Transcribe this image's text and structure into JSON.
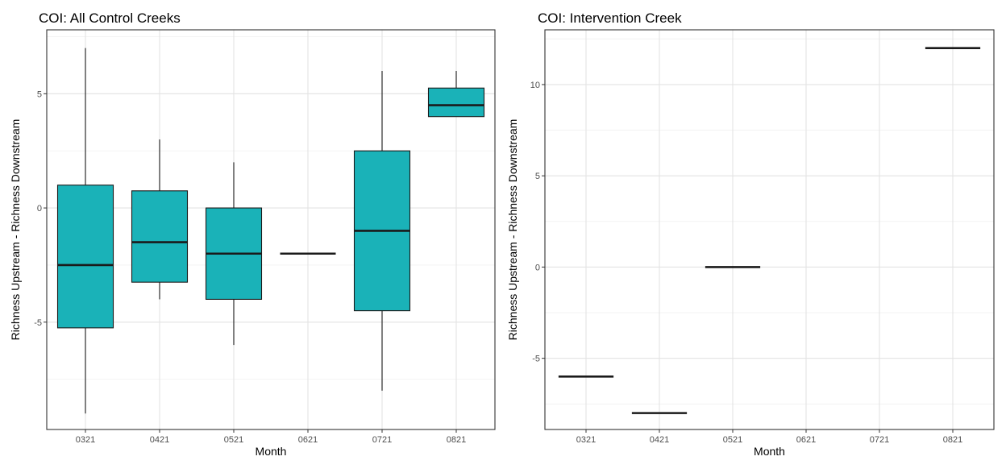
{
  "chart_data": [
    {
      "type": "boxplot",
      "title": "COI: All Control Creeks",
      "xlabel": "Month",
      "ylabel": "Richness Upstream - Richness Downstream",
      "categories": [
        "0321",
        "0421",
        "0521",
        "0621",
        "0721",
        "0821"
      ],
      "ylim": [
        -9.7,
        7.8
      ],
      "yticks": [
        -5,
        0,
        5
      ],
      "ytick_labels": [
        "-5",
        "0",
        "5"
      ],
      "box_fill": "#1AB2B8",
      "boxes": [
        {
          "category": "0321",
          "min": -9,
          "q1": -5.25,
          "median": -2.5,
          "q3": 1,
          "max": 7
        },
        {
          "category": "0421",
          "min": -4,
          "q1": -3.25,
          "median": -1.5,
          "q3": 0.75,
          "max": 3
        },
        {
          "category": "0521",
          "min": -6,
          "q1": -4,
          "median": -2,
          "q3": 0,
          "max": 2
        },
        {
          "category": "0621",
          "min": -2,
          "q1": -2,
          "median": -2,
          "q3": -2,
          "max": -2
        },
        {
          "category": "0721",
          "min": -8,
          "q1": -4.5,
          "median": -1,
          "q3": 2.5,
          "max": 6
        },
        {
          "category": "0821",
          "min": 4,
          "q1": 4,
          "median": 4.5,
          "q3": 5.25,
          "max": 6
        }
      ]
    },
    {
      "type": "boxplot",
      "title": "COI: Intervention Creek",
      "xlabel": "Month",
      "ylabel": "Richness Upstream - Richness Downstream",
      "categories": [
        "0321",
        "0421",
        "0521",
        "0621",
        "0721",
        "0821"
      ],
      "ylim": [
        -8.9,
        13.0
      ],
      "yticks": [
        -5,
        0,
        5,
        10
      ],
      "ytick_labels": [
        "-5",
        "0",
        "5",
        "10"
      ],
      "box_fill": "#1AB2B8",
      "boxes": [
        {
          "category": "0321",
          "min": -6,
          "q1": -6,
          "median": -6,
          "q3": -6,
          "max": -6
        },
        {
          "category": "0421",
          "min": -8,
          "q1": -8,
          "median": -8,
          "q3": -8,
          "max": -8
        },
        {
          "category": "0521",
          "min": 0,
          "q1": 0,
          "median": 0,
          "q3": 0,
          "max": 0
        },
        {
          "category": "0821",
          "min": 12,
          "q1": 12,
          "median": 12,
          "q3": 12,
          "max": 12
        }
      ]
    }
  ]
}
